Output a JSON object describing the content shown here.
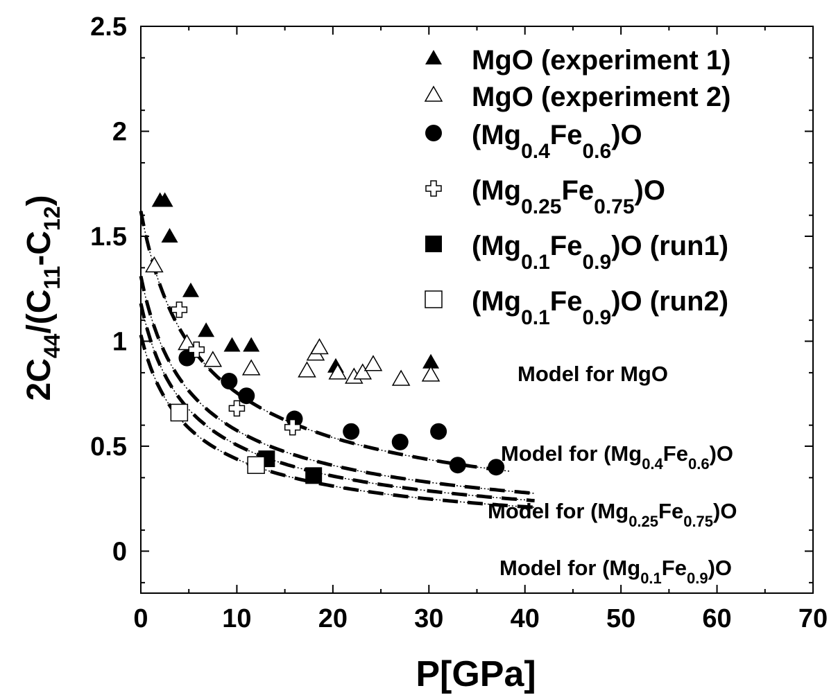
{
  "chart_data": {
    "type": "scatter",
    "xlabel": "P[GPa]",
    "ylabel_parts": [
      "2C",
      "44",
      "/(C",
      "11",
      "-C",
      "12",
      ")"
    ],
    "xlim": [
      0,
      70
    ],
    "ylim": [
      -0.2,
      2.5
    ],
    "x_ticks": [
      "0",
      "10",
      "20",
      "30",
      "40",
      "50",
      "60",
      "70"
    ],
    "y_ticks": [
      "0",
      "0.5",
      "1",
      "1.5",
      "2",
      "2.5"
    ],
    "legend_position": "top-right",
    "series": [
      {
        "legend": [
          "MgO (experiment 1)"
        ],
        "marker": "triangle-filled",
        "points": [
          [
            2,
            1.67
          ],
          [
            2.5,
            1.67
          ],
          [
            3,
            1.5
          ],
          [
            5.2,
            1.24
          ],
          [
            6.8,
            1.05
          ],
          [
            9.5,
            0.98
          ],
          [
            11.5,
            0.98
          ],
          [
            20.3,
            0.88
          ],
          [
            30.2,
            0.9
          ]
        ]
      },
      {
        "legend": [
          "MgO (experiment 2)"
        ],
        "marker": "triangle-open",
        "points": [
          [
            1.4,
            1.36
          ],
          [
            4.8,
            0.99
          ],
          [
            7.5,
            0.91
          ],
          [
            11.5,
            0.87
          ],
          [
            17.3,
            0.86
          ],
          [
            18.2,
            0.94
          ],
          [
            18.6,
            0.97
          ],
          [
            20.5,
            0.85
          ],
          [
            22.2,
            0.83
          ],
          [
            23.1,
            0.85
          ],
          [
            24.2,
            0.89
          ],
          [
            27.1,
            0.82
          ],
          [
            30.2,
            0.84
          ]
        ]
      },
      {
        "legend": [
          "(Mg",
          "0.4",
          "Fe",
          "0.6",
          ")O"
        ],
        "marker": "circle-filled",
        "points": [
          [
            4.8,
            0.92
          ],
          [
            9.2,
            0.81
          ],
          [
            11,
            0.74
          ],
          [
            16,
            0.63
          ],
          [
            21.9,
            0.57
          ],
          [
            27,
            0.52
          ],
          [
            31,
            0.57
          ],
          [
            33,
            0.41
          ],
          [
            37,
            0.4
          ]
        ]
      },
      {
        "legend": [
          "(Mg",
          "0.25",
          "Fe",
          "0.75",
          ")O"
        ],
        "marker": "cross-open",
        "points": [
          [
            4,
            1.15
          ],
          [
            5.8,
            0.96
          ],
          [
            10,
            0.68
          ],
          [
            15.8,
            0.59
          ]
        ]
      },
      {
        "legend": [
          "(Mg",
          "0.1",
          "Fe",
          "0.9",
          ")O (run1)"
        ],
        "marker": "square-filled",
        "points": [
          [
            13.1,
            0.44
          ],
          [
            18,
            0.36
          ]
        ]
      },
      {
        "legend": [
          "(Mg",
          "0.1",
          "Fe",
          "0.9",
          ")O (run2)"
        ],
        "marker": "square-open",
        "points": [
          [
            4,
            0.66
          ],
          [
            12,
            0.41
          ]
        ]
      }
    ],
    "models": [
      {
        "label": [
          "Model for MgO"
        ],
        "a": 1.62,
        "b": 0.128,
        "xmax": 38.5
      },
      {
        "label": [
          "Model for (Mg",
          "0.4",
          "Fe",
          "0.6",
          ")O"
        ],
        "a": 1.31,
        "b": 0.146,
        "xmax": 41
      },
      {
        "label": [
          "Model for (Mg",
          "0.25",
          "Fe",
          "0.75",
          ")O"
        ],
        "a": 1.18,
        "b": 0.154,
        "xmax": 41
      },
      {
        "label": [
          "Model for (Mg",
          "0.1",
          "Fe",
          "0.9",
          ")O"
        ],
        "a": 1.03,
        "b": 0.156,
        "xmax": 41
      }
    ]
  }
}
